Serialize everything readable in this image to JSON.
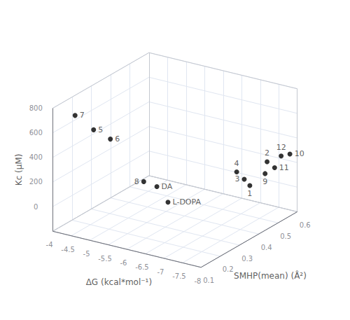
{
  "chart_data": {
    "type": "scatter3d",
    "xlabel": "ΔG (kcal*mol⁻¹)",
    "ylabel": "SMHP(mean) (Å²)",
    "zlabel": "Kc (μM)",
    "labels": [
      "7",
      "5",
      "6",
      "8",
      "DA",
      "L-DOPA",
      "4",
      "3",
      "1",
      "2",
      "9",
      "11",
      "12",
      "10"
    ],
    "x": [
      -4.5,
      -5.0,
      -5.4,
      -6.3,
      -6.55,
      -6.85,
      -7.3,
      -7.4,
      -7.55,
      -7.6,
      -7.65,
      -7.7,
      -7.72,
      -7.8
    ],
    "y": [
      0.12,
      0.12,
      0.13,
      0.13,
      0.15,
      0.15,
      0.42,
      0.44,
      0.44,
      0.52,
      0.5,
      0.54,
      0.57,
      0.6
    ],
    "z": [
      760,
      680,
      625,
      345,
      305,
      200,
      235,
      165,
      125,
      250,
      175,
      190,
      260,
      255
    ],
    "color": "#000000",
    "xlim": [
      -4.0,
      -8.0
    ],
    "ylim": [
      0.1,
      0.6
    ],
    "zlim": [
      -200,
      800
    ],
    "xticks": [
      -8.0,
      -7.5,
      -7.0,
      -6.5,
      -6.0,
      -5.5,
      -5.0,
      -4.5,
      -4.0
    ],
    "yticks": [
      0.1,
      0.2,
      0.3,
      0.4,
      0.5,
      0.6
    ],
    "zticks": [
      0,
      200,
      400,
      600,
      800
    ],
    "grid": true
  }
}
